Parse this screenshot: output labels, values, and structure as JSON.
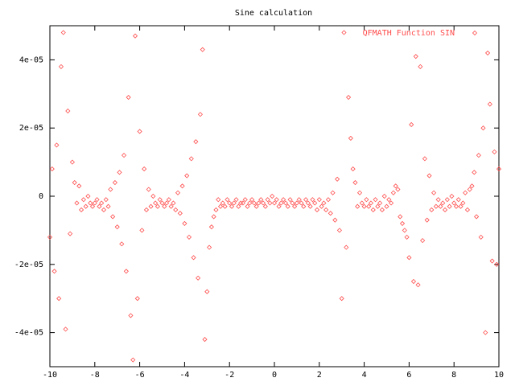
{
  "chart_data": {
    "type": "scatter",
    "title": "Sine calculation",
    "xlim": [
      -10,
      10
    ],
    "xticks": [
      -10,
      -8,
      -6,
      -4,
      -2,
      0,
      2,
      4,
      6,
      8,
      10
    ],
    "ylim": [
      -5e-05,
      5e-05
    ],
    "yticks": [
      {
        "value": -4e-05,
        "label": "-4e-05"
      },
      {
        "value": -2e-05,
        "label": "-2e-05"
      },
      0,
      {
        "value": 2e-05,
        "label": "2e-05"
      },
      {
        "value": 4e-05,
        "label": "4e-05"
      }
    ],
    "legend": "top-right",
    "series": [
      {
        "name": "QFMATH Function SIN",
        "color": "#ff4c4c",
        "x": [
          -10.0,
          -9.9,
          -9.8,
          -9.7,
          -9.6,
          -9.5,
          -9.4,
          -9.3,
          -9.2,
          -9.1,
          -9.0,
          -8.9,
          -8.8,
          -8.7,
          -8.6,
          -8.5,
          -8.4,
          -8.3,
          -8.2,
          -8.1,
          -8.0,
          -7.9,
          -7.8,
          -7.7,
          -7.6,
          -7.5,
          -7.4,
          -7.3,
          -7.2,
          -7.1,
          -7.0,
          -6.9,
          -6.8,
          -6.7,
          -6.6,
          -6.5,
          -6.4,
          -6.3,
          -6.2,
          -6.1,
          -6.0,
          -5.9,
          -5.8,
          -5.7,
          -5.6,
          -5.5,
          -5.4,
          -5.3,
          -5.2,
          -5.1,
          -5.0,
          -4.9,
          -4.8,
          -4.7,
          -4.6,
          -4.5,
          -4.4,
          -4.3,
          -4.2,
          -4.1,
          -4.0,
          -3.9,
          -3.8,
          -3.7,
          -3.6,
          -3.5,
          -3.4,
          -3.3,
          -3.2,
          -3.1,
          -3.0,
          -2.9,
          -2.8,
          -2.7,
          -2.6,
          -2.5,
          -2.4,
          -2.3,
          -2.2,
          -2.1,
          -2.0,
          -1.9,
          -1.8,
          -1.7,
          -1.6,
          -1.5,
          -1.4,
          -1.3,
          -1.2,
          -1.1,
          -1.0,
          -0.9,
          -0.8,
          -0.7,
          -0.6,
          -0.5,
          -0.4,
          -0.3,
          -0.2,
          -0.1,
          0.0,
          0.1,
          0.2,
          0.3,
          0.4,
          0.5,
          0.6,
          0.7,
          0.8,
          0.9,
          1.0,
          1.1,
          1.2,
          1.3,
          1.4,
          1.5,
          1.6,
          1.7,
          1.8,
          1.9,
          2.0,
          2.1,
          2.2,
          2.3,
          2.4,
          2.5,
          2.6,
          2.7,
          2.8,
          2.9,
          3.0,
          3.1,
          3.2,
          3.3,
          3.4,
          3.5,
          3.6,
          3.7,
          3.8,
          3.9,
          4.0,
          4.1,
          4.2,
          4.3,
          4.4,
          4.5,
          4.6,
          4.7,
          4.8,
          4.9,
          5.0,
          5.1,
          5.2,
          5.3,
          5.4,
          5.5,
          5.6,
          5.7,
          5.8,
          5.9,
          6.0,
          6.1,
          6.2,
          6.3,
          6.4,
          6.5,
          6.6,
          6.7,
          6.8,
          6.9,
          7.0,
          7.1,
          7.2,
          7.3,
          7.4,
          7.5,
          7.6,
          7.7,
          7.8,
          7.9,
          8.0,
          8.1,
          8.2,
          8.3,
          8.4,
          8.5,
          8.6,
          8.7,
          8.8,
          8.9,
          9.0,
          9.1,
          9.2,
          9.3,
          9.4,
          9.5,
          9.6,
          9.7,
          9.8,
          9.9,
          10.0
        ],
        "values": [
          -1.2e-05,
          8e-06,
          -2.2e-05,
          1.5e-05,
          -3e-05,
          3.8e-05,
          4.8e-05,
          -3.9e-05,
          2.5e-05,
          -1.1e-05,
          1e-05,
          4e-06,
          -2e-06,
          3e-06,
          -4e-06,
          -1e-06,
          -3e-06,
          0,
          -2e-06,
          -3e-06,
          -2e-06,
          -1e-06,
          -3e-06,
          -2e-06,
          -4e-06,
          -1e-06,
          -3e-06,
          2e-06,
          -6e-06,
          4e-06,
          -9e-06,
          7e-06,
          -1.4e-05,
          1.2e-05,
          -2.2e-05,
          2.9e-05,
          -3.5e-05,
          -4.8e-05,
          4.7e-05,
          -3e-05,
          1.9e-05,
          -1e-05,
          8e-06,
          -4e-06,
          2e-06,
          -3e-06,
          0,
          -2e-06,
          -3e-06,
          -1e-06,
          -2e-06,
          -3e-06,
          -2e-06,
          -1e-06,
          -3e-06,
          -2e-06,
          -4e-06,
          1e-06,
          -5e-06,
          3e-06,
          -8e-06,
          6e-06,
          -1.2e-05,
          1.1e-05,
          -1.8e-05,
          1.6e-05,
          -2.4e-05,
          2.4e-05,
          4.3e-05,
          -4.2e-05,
          -2.8e-05,
          -1.5e-05,
          -9e-06,
          -6e-06,
          -4e-06,
          -1e-06,
          -3e-06,
          -2e-06,
          -3e-06,
          -1e-06,
          -2e-06,
          -3e-06,
          -2e-06,
          -1e-06,
          -3e-06,
          -2e-06,
          -2e-06,
          -1e-06,
          -3e-06,
          -2e-06,
          -1e-06,
          -2e-06,
          -3e-06,
          -2e-06,
          -1e-06,
          -2e-06,
          -3e-06,
          -1e-06,
          -2e-06,
          0,
          -2e-06,
          -1e-06,
          -3e-06,
          -2e-06,
          -1e-06,
          -2e-06,
          -3e-06,
          -1e-06,
          -2e-06,
          -3e-06,
          -2e-06,
          -1e-06,
          -2e-06,
          -3e-06,
          -1e-06,
          -2e-06,
          -3e-06,
          -1e-06,
          -2e-06,
          -4e-06,
          -1e-06,
          -3e-06,
          -2e-06,
          -4e-06,
          -1e-06,
          -5e-06,
          1e-06,
          -7e-06,
          5e-06,
          -1e-05,
          -3e-05,
          4.8e-05,
          -1.5e-05,
          2.9e-05,
          1.7e-05,
          8e-06,
          4e-06,
          -3e-06,
          1e-06,
          -2e-06,
          -3e-06,
          -1e-06,
          -3e-06,
          -2e-06,
          -4e-06,
          -1e-06,
          -3e-06,
          -2e-06,
          -4e-06,
          0,
          -3e-06,
          -1e-06,
          -2e-06,
          1e-06,
          3e-06,
          2e-06,
          -6e-06,
          -8e-06,
          -1e-05,
          -1.2e-05,
          -1.8e-05,
          2.1e-05,
          -2.5e-05,
          4.1e-05,
          -2.6e-05,
          3.8e-05,
          -1.3e-05,
          1.1e-05,
          -7e-06,
          6e-06,
          -4e-06,
          1e-06,
          -3e-06,
          -1e-06,
          -3e-06,
          -2e-06,
          -4e-06,
          -1e-06,
          -3e-06,
          0,
          -2e-06,
          -3e-06,
          -1e-06,
          -3e-06,
          -2e-06,
          1e-06,
          -4e-06,
          2e-06,
          3e-06,
          7e-06,
          -6e-06,
          1.2e-05,
          -1.2e-05,
          2e-05,
          -4e-05,
          4.2e-05,
          2.7e-05,
          -1.9e-05,
          1.3e-05,
          -2e-05,
          8e-06
        ]
      }
    ]
  }
}
